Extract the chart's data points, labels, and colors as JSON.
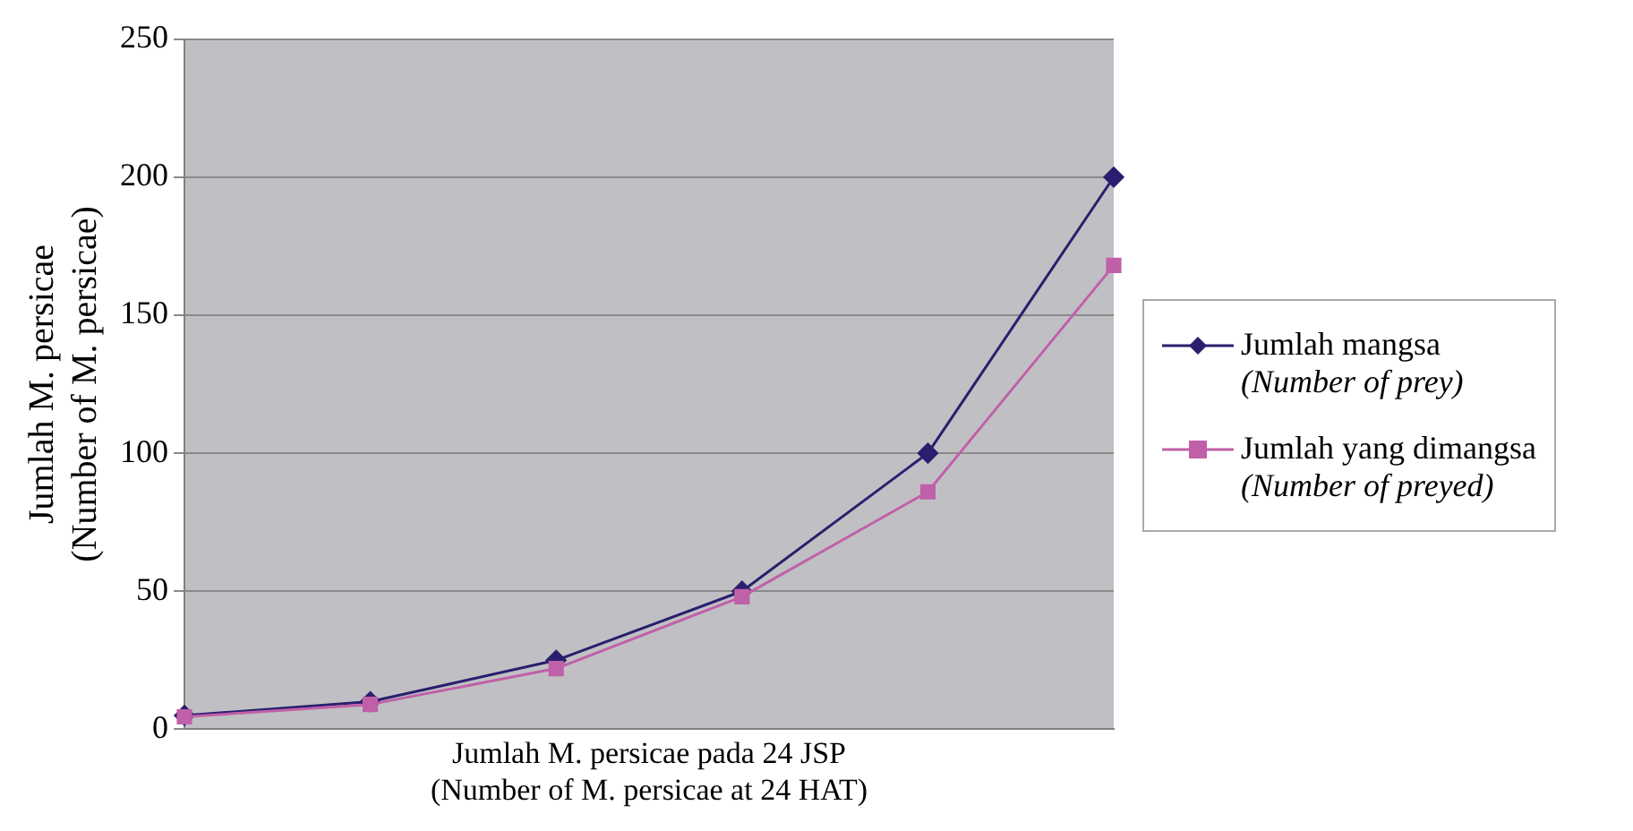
{
  "chart_data": {
    "type": "line",
    "xlabel": "Jumlah M. persicae pada 24 JSP\n(Number of M. persicae at 24 HAT)",
    "ylabel": "Jumlah M. persicae\n(Number of M. persicae)",
    "categories": [
      null,
      null,
      null,
      null,
      null,
      null
    ],
    "series": [
      {
        "name": "Jumlah mangsa\n(Number of prey)",
        "color": "#2a1f6e",
        "marker": "diamond",
        "values": [
          5,
          10,
          25,
          50,
          100,
          200
        ]
      },
      {
        "name": "Jumlah yang dimangsa\n(Number of preyed)",
        "color": "#c060a8",
        "marker": "square",
        "values": [
          4.5,
          9,
          22,
          48,
          86,
          168
        ]
      }
    ],
    "ylim": [
      0,
      250
    ],
    "yticks": [
      0,
      50,
      100,
      150,
      200,
      250
    ],
    "grid": "y",
    "legend": "right"
  }
}
